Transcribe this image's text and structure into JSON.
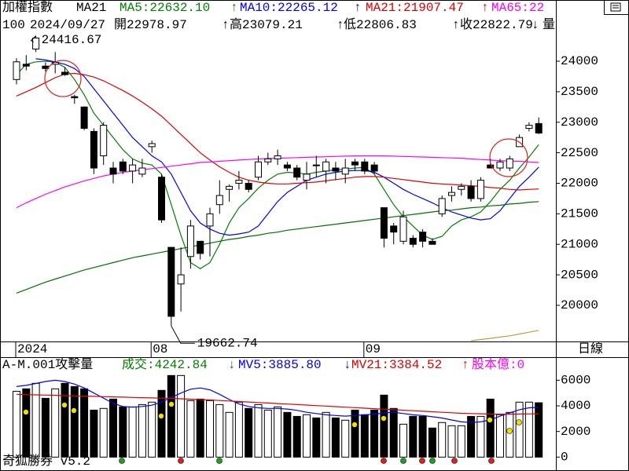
{
  "chart_data": [
    {
      "type": "candlestick",
      "title": "加權指數",
      "indicator": "MA21",
      "period": "日線",
      "info": [
        {
          "text": "100"
        },
        {
          "text": "2024/09/27"
        },
        {
          "text": "開22978.97",
          "arrow": "↑"
        },
        {
          "text": "高23079.21",
          "arrow": "↑"
        },
        {
          "text": "低22806.83",
          "arrow": "↑"
        },
        {
          "text": "收22822.79",
          "arrow": "↓"
        },
        {
          "text": "量"
        }
      ],
      "categories": [
        "2024",
        null,
        null,
        null,
        null,
        null,
        null,
        null,
        null,
        null,
        null,
        null,
        null,
        null,
        "08",
        null,
        null,
        null,
        null,
        null,
        null,
        null,
        null,
        null,
        null,
        null,
        null,
        null,
        null,
        null,
        null,
        null,
        null,
        null,
        null,
        null,
        "09",
        null,
        null,
        null,
        null,
        null,
        null,
        null,
        null,
        null,
        null,
        null,
        null,
        null,
        null,
        null,
        null,
        null,
        null
      ],
      "open": [
        23700,
        23950,
        24200,
        23920,
        23950,
        23820,
        23420,
        23250,
        22850,
        22450,
        22250,
        22350,
        22200,
        22150,
        22600,
        22100,
        20950,
        20350,
        20800,
        21050,
        21300,
        21650,
        21900,
        22000,
        22000,
        22100,
        22350,
        22400,
        22300,
        22250,
        22050,
        22300,
        22200,
        22250,
        22150,
        22350,
        22350,
        22300,
        21600,
        21300,
        21050,
        21100,
        21200,
        21050,
        21500,
        21800,
        21900,
        21950,
        21750,
        22300,
        22250,
        22250,
        22600,
        22900,
        22978.97
      ],
      "high": [
        24050,
        24100,
        24416.67,
        23980,
        24150,
        23900,
        23450,
        23260,
        22900,
        23000,
        22350,
        22400,
        22400,
        22400,
        22700,
        22150,
        20950,
        20950,
        21400,
        21050,
        21600,
        22050,
        21980,
        22200,
        22050,
        22450,
        22500,
        22550,
        22350,
        22300,
        22350,
        22450,
        22400,
        22350,
        22400,
        22400,
        22400,
        22350,
        21600,
        21350,
        21550,
        21150,
        21250,
        21100,
        21800,
        21950,
        22000,
        22050,
        22100,
        22400,
        22400,
        22450,
        22800,
        23000,
        23079.21
      ],
      "low": [
        23620,
        23850,
        24150,
        23830,
        23800,
        23760,
        23300,
        22870,
        22150,
        22300,
        22000,
        22150,
        22000,
        22100,
        22500,
        21350,
        19662.74,
        19900,
        20600,
        20750,
        20800,
        21500,
        21700,
        21900,
        21850,
        22050,
        22300,
        22300,
        22200,
        22050,
        21900,
        22100,
        22000,
        22050,
        22000,
        22200,
        22150,
        22150,
        20950,
        21000,
        21000,
        20950,
        20950,
        21000,
        21450,
        21700,
        21800,
        21700,
        21700,
        22250,
        22200,
        22200,
        22600,
        22850,
        22806.83
      ],
      "close": [
        23990,
        23920,
        24380,
        23880,
        23980,
        23780,
        23400,
        22900,
        22250,
        22950,
        22150,
        22200,
        22300,
        22250,
        22650,
        21400,
        19820,
        20500,
        21300,
        20850,
        21500,
        21800,
        21950,
        22050,
        21900,
        22350,
        22400,
        22450,
        22250,
        22100,
        22150,
        22290,
        22350,
        22200,
        22250,
        22300,
        22200,
        22200,
        21100,
        21200,
        21450,
        21000,
        21050,
        21000,
        21750,
        21850,
        21950,
        21750,
        22050,
        22250,
        22350,
        22400,
        22750,
        22950,
        22822.79
      ],
      "series": [
        {
          "name": "MA5:22632.10",
          "arrow": "↑",
          "color": "#008000",
          "values": [
            23780,
            23950,
            23990,
            24000,
            23990,
            23900,
            23700,
            23450,
            23150,
            22950,
            22750,
            22550,
            22400,
            22330,
            22300,
            22150,
            21650,
            21150,
            20700,
            20600,
            20700,
            21000,
            21350,
            21600,
            21750,
            21920,
            22050,
            22150,
            22180,
            22170,
            22150,
            22180,
            22200,
            22220,
            22230,
            22250,
            22260,
            22150,
            21900,
            21650,
            21450,
            21300,
            21150,
            21080,
            21130,
            21300,
            21400,
            21450,
            21530,
            21700,
            21900,
            22050,
            22250,
            22430,
            22632.1
          ]
        },
        {
          "name": "MA10:22265.12",
          "arrow": "↑",
          "color": "#0000ff",
          "values": [
            null,
            null,
            24040,
            24020,
            23990,
            23950,
            23880,
            23750,
            23550,
            23350,
            23150,
            22950,
            22750,
            22600,
            22450,
            22350,
            22150,
            21850,
            21550,
            21350,
            21250,
            21180,
            21150,
            21170,
            21200,
            21300,
            21500,
            21700,
            21850,
            21950,
            22050,
            22100,
            22150,
            22180,
            22200,
            22210,
            22210,
            22180,
            22100,
            22000,
            21900,
            21820,
            21750,
            21680,
            21600,
            21530,
            21480,
            21430,
            21400,
            21420,
            21550,
            21750,
            21950,
            22100,
            22265.12
          ]
        },
        {
          "name": "MA21:21907.47",
          "arrow": "↑",
          "color": "#e00000",
          "values": [
            23430,
            23500,
            23570,
            23650,
            23730,
            23790,
            23800,
            23780,
            23740,
            23680,
            23600,
            23520,
            23430,
            23330,
            23220,
            23100,
            22950,
            22800,
            22650,
            22500,
            22380,
            22270,
            22180,
            22100,
            22050,
            22020,
            22000,
            21990,
            21990,
            22000,
            22010,
            22020,
            22040,
            22060,
            22080,
            22100,
            22110,
            22110,
            22100,
            22080,
            22060,
            22040,
            22020,
            22000,
            21990,
            21980,
            21970,
            21960,
            21950,
            21930,
            21920,
            21900,
            21890,
            21900,
            21907.47
          ]
        },
        {
          "name": "MA65:22",
          "color": "#ff00ff",
          "values": [
            21600,
            21680,
            21750,
            21820,
            21880,
            21940,
            21990,
            22040,
            22080,
            22120,
            22150,
            22180,
            22200,
            22220,
            22240,
            22260,
            22280,
            22300,
            22320,
            22340,
            22350,
            22360,
            22370,
            22380,
            22390,
            22400,
            22405,
            22410,
            22415,
            22420,
            22425,
            22430,
            22435,
            22440,
            22445,
            22448,
            22450,
            22450,
            22448,
            22445,
            22440,
            22435,
            22430,
            22425,
            22420,
            22415,
            22410,
            22400,
            22390,
            22380,
            22370,
            22365,
            22360,
            22350,
            22340
          ]
        },
        {
          "color": "#007000",
          "values": [
            20200,
            20260,
            20320,
            20380,
            20430,
            20480,
            20530,
            20580,
            20620,
            20660,
            20700,
            20740,
            20780,
            20810,
            20840,
            20870,
            20900,
            20930,
            20960,
            20990,
            21020,
            21050,
            21080,
            21100,
            21130,
            21150,
            21180,
            21200,
            21230,
            21250,
            21270,
            21290,
            21310,
            21330,
            21350,
            21370,
            21390,
            21410,
            21430,
            21450,
            21470,
            21490,
            21510,
            21530,
            21550,
            21560,
            21580,
            21600,
            21610,
            21630,
            21640,
            21660,
            21670,
            21690,
            21700
          ]
        },
        {
          "color": "#b8a040",
          "values": [
            null,
            null,
            null,
            null,
            null,
            null,
            null,
            null,
            null,
            null,
            null,
            null,
            null,
            null,
            null,
            null,
            null,
            null,
            null,
            null,
            null,
            null,
            null,
            null,
            null,
            null,
            null,
            null,
            null,
            null,
            null,
            null,
            null,
            null,
            null,
            null,
            null,
            null,
            null,
            null,
            null,
            null,
            null,
            null,
            null,
            null,
            null,
            19420,
            19440,
            19460,
            19480,
            19500,
            19530,
            19560,
            19590
          ]
        }
      ],
      "ylim": [
        19408,
        25003
      ],
      "yticks": [
        20000,
        20500,
        21000,
        21500,
        22000,
        22500,
        23000,
        23500,
        24000
      ]
    },
    {
      "type": "bar",
      "title": "A-M.001攻擊量",
      "footer": "奇狐勝券 v5.2",
      "extra_legend": {
        "text": "股本億:0",
        "color": "#ff00ff"
      },
      "series": [
        {
          "type": "bar",
          "name": "成交:4242.84",
          "arrow": "↓",
          "color": "#008000",
          "values": [
            5140,
            5330,
            5760,
            4590,
            5330,
            5760,
            5510,
            5330,
            3670,
            3800,
            4530,
            3920,
            3920,
            4100,
            4290,
            5210,
            6370,
            6370,
            4410,
            4530,
            4410,
            4100,
            3490,
            4290,
            3800,
            4100,
            3670,
            3920,
            3490,
            3180,
            3310,
            3060,
            3490,
            3060,
            2880,
            3670,
            3310,
            3670,
            4840,
            3800,
            2570,
            3180,
            3180,
            2270,
            2700,
            2450,
            2450,
            3180,
            3180,
            4530,
            3310,
            3490,
            4290,
            4290,
            4242.84
          ]
        },
        {
          "type": "line",
          "name": "MV5:3885.80",
          "arrow": "↓",
          "color": "#0000ff",
          "values": [
            5510,
            5600,
            5750,
            5900,
            6000,
            5900,
            5700,
            5400,
            5000,
            4600,
            4200,
            3950,
            3900,
            3950,
            4050,
            4300,
            4650,
            5000,
            5300,
            5400,
            5250,
            4900,
            4500,
            4150,
            3950,
            3850,
            3800,
            3800,
            3750,
            3650,
            3500,
            3400,
            3300,
            3250,
            3200,
            3250,
            3300,
            3350,
            3450,
            3500,
            3400,
            3300,
            3250,
            3150,
            3050,
            2900,
            2750,
            2700,
            2750,
            2900,
            3200,
            3450,
            3700,
            3850,
            3885.8
          ]
        },
        {
          "type": "line",
          "name": "MV21:3384.52",
          "arrow": "↑",
          "color": "#e00000",
          "values": [
            4900,
            4880,
            4860,
            4840,
            4820,
            4800,
            4780,
            4760,
            4740,
            4720,
            4700,
            4680,
            4660,
            4640,
            4620,
            4600,
            4580,
            4550,
            4520,
            4490,
            4460,
            4420,
            4380,
            4340,
            4300,
            4260,
            4220,
            4180,
            4140,
            4100,
            4060,
            4020,
            3980,
            3940,
            3900,
            3860,
            3820,
            3780,
            3740,
            3700,
            3660,
            3620,
            3580,
            3540,
            3500,
            3460,
            3420,
            3400,
            3380,
            3360,
            3350,
            3350,
            3360,
            3370,
            3384.52
          ]
        }
      ],
      "ylim": [
        -900,
        7800
      ],
      "yticks": [
        0,
        2000,
        4000,
        6000
      ]
    }
  ]
}
